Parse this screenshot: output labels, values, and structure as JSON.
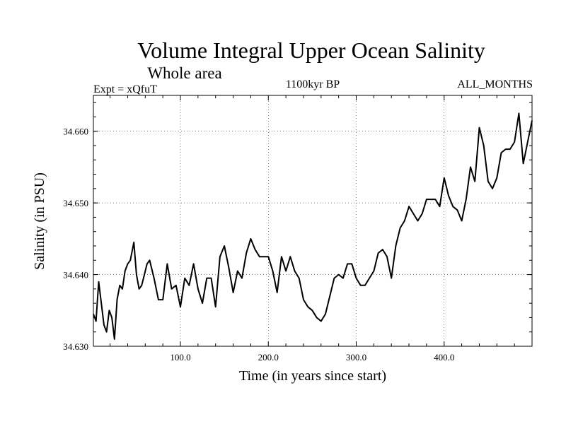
{
  "chart_data": {
    "type": "line",
    "title": "Volume Integral Upper Ocean Salinity",
    "subtitle": "Whole area",
    "experiment": "Expt = xQfuT",
    "period": "1100kyr BP",
    "months": "ALL_MONTHS",
    "xlabel": "Time (in years since start)",
    "ylabel": "Salinity (in PSU)",
    "xlim": [
      1,
      500
    ],
    "ylim": [
      34.63,
      34.665
    ],
    "xticks": [
      100,
      200,
      300,
      400
    ],
    "xtick_labels": [
      "100.0",
      "200.0",
      "300.0",
      "400.0"
    ],
    "yticks": [
      34.63,
      34.64,
      34.65,
      34.66
    ],
    "ytick_labels": [
      "34.630",
      "34.640",
      "34.650",
      "34.660"
    ],
    "series": [
      {
        "name": "salinity",
        "x": [
          1,
          4,
          7,
          10,
          13,
          16,
          19,
          22,
          25,
          28,
          31,
          34,
          37,
          40,
          43,
          47,
          50,
          53,
          56,
          59,
          62,
          65,
          70,
          75,
          80,
          85,
          90,
          95,
          100,
          105,
          110,
          115,
          120,
          125,
          130,
          135,
          140,
          145,
          150,
          155,
          160,
          165,
          170,
          175,
          180,
          185,
          190,
          195,
          200,
          205,
          210,
          215,
          220,
          225,
          230,
          235,
          240,
          245,
          250,
          255,
          260,
          265,
          270,
          275,
          280,
          285,
          290,
          295,
          300,
          305,
          310,
          315,
          320,
          325,
          330,
          335,
          340,
          345,
          350,
          355,
          360,
          365,
          370,
          375,
          380,
          385,
          390,
          395,
          400,
          405,
          410,
          415,
          420,
          425,
          430,
          435,
          440,
          445,
          450,
          455,
          460,
          465,
          470,
          475,
          480,
          485,
          490,
          495,
          500
        ],
        "values": [
          34.6345,
          34.6335,
          34.639,
          34.636,
          34.633,
          34.632,
          34.635,
          34.634,
          34.631,
          34.6365,
          34.6385,
          34.638,
          34.6405,
          34.6415,
          34.642,
          34.6445,
          34.64,
          34.638,
          34.6385,
          34.64,
          34.6415,
          34.642,
          34.6395,
          34.6365,
          34.6365,
          34.6415,
          34.638,
          34.6385,
          34.6355,
          34.6395,
          34.6385,
          34.6415,
          34.638,
          34.636,
          34.6395,
          34.6395,
          34.6355,
          34.6425,
          34.644,
          34.641,
          34.6375,
          34.6405,
          34.6395,
          34.643,
          34.645,
          34.6435,
          34.6425,
          34.6425,
          34.6425,
          34.6405,
          34.6375,
          34.6425,
          34.6405,
          34.6425,
          34.6405,
          34.6395,
          34.6365,
          34.6355,
          34.635,
          34.634,
          34.6335,
          34.6345,
          34.637,
          34.6395,
          34.64,
          34.6395,
          34.6415,
          34.6415,
          34.6395,
          34.6385,
          34.6385,
          34.6395,
          34.6405,
          34.643,
          34.6435,
          34.6425,
          34.6395,
          34.644,
          34.6465,
          34.6475,
          34.6495,
          34.6485,
          34.6475,
          34.6485,
          34.6505,
          34.6505,
          34.6505,
          34.6495,
          34.6535,
          34.651,
          34.6495,
          34.649,
          34.6475,
          34.6505,
          34.655,
          34.653,
          34.6605,
          34.658,
          34.653,
          34.652,
          34.6535,
          34.657,
          34.6575,
          34.6575,
          34.6585,
          34.6625,
          34.6555,
          34.6585,
          34.6615
        ]
      }
    ]
  }
}
